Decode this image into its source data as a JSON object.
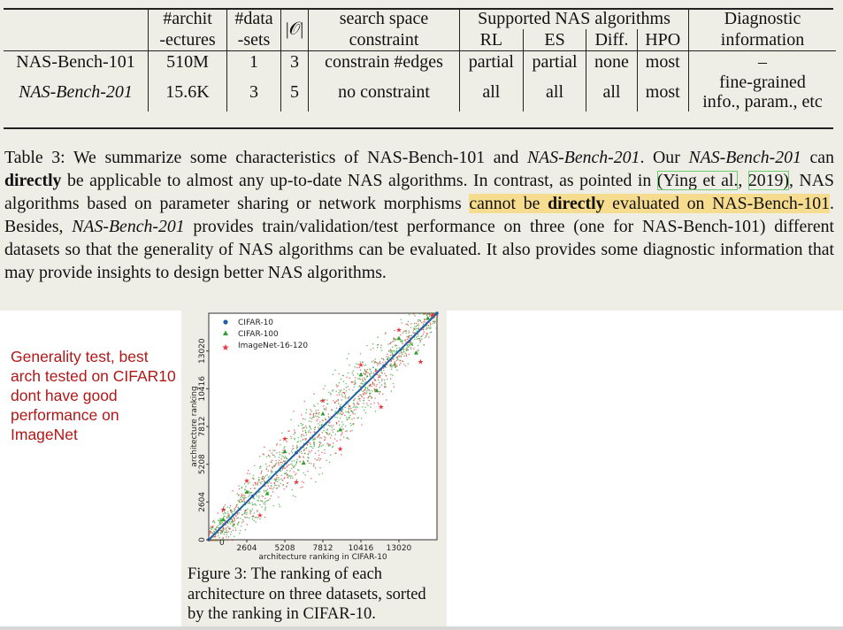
{
  "table": {
    "header_top": [
      "#archit",
      "#data",
      "|𝒪|",
      "search space",
      "Supported NAS algorithms",
      "Diagnostic"
    ],
    "header_bottom": [
      "-ectures",
      "-sets",
      "",
      "constraint",
      "RL",
      "ES",
      "Diff.",
      "HPO",
      "information"
    ],
    "rows": [
      {
        "name": "NAS-Bench-101",
        "architectures": "510M",
        "datasets": "1",
        "ops": "3",
        "constraint": "constrain #edges",
        "rl": "partial",
        "es": "partial",
        "diff": "none",
        "hpo": "most",
        "diagnostic": "–"
      },
      {
        "name": "NAS-Bench-201",
        "architectures": "15.6K",
        "datasets": "3",
        "ops": "5",
        "constraint": "no constraint",
        "rl": "all",
        "es": "all",
        "diff": "all",
        "hpo": "most",
        "diagnostic_line1": "fine-grained",
        "diagnostic_line2": "info., param., etc"
      }
    ]
  },
  "caption": {
    "s1": "Table 3:  We summarize some characteristics of NAS-Bench-101 and ",
    "s2": "NAS-Bench-201",
    "s3": ". Our ",
    "s4": "NAS-Bench-201",
    "s5": " can ",
    "s6": "directly",
    "s7": " be applicable to almost any up-to-date NAS algorithms.  In contrast, as pointed in ",
    "s8": "(Ying et al.",
    "s9": ", ",
    "s10": "2019)",
    "s11": ", NAS algorithms based on parameter sharing or network morphisms ",
    "s12": "cannot be ",
    "s13": "directly",
    "s14": " evaluated on NAS-Bench-101",
    "s15": ".  Besides, ",
    "s16": "NAS-Bench-201",
    "s17": " provides train/validation/test performance on three (one for NAS-Bench-101) different datasets so that the generality of NAS algorithms can be evaluated.  It also provides some diagnostic information that may provide insights to design better NAS algorithms."
  },
  "note": {
    "text": "Generality test, best arch tested on CIFAR10 dont have good performance on ImageNet",
    "color": "#b01818"
  },
  "figure": {
    "caption": "Figure 3:  The ranking of each architecture on three datasets, sorted by the ranking in CIFAR-10."
  },
  "chart_data": {
    "type": "scatter",
    "xlabel": "architecture ranking in CIFAR-10",
    "ylabel": "architecture ranking",
    "xlim": [
      0,
      15625
    ],
    "ylim": [
      0,
      15625
    ],
    "xticks": [
      2604,
      5208,
      7812,
      10416,
      13020
    ],
    "yticks": [
      0,
      2604,
      5208,
      7812,
      10416,
      13020
    ],
    "x_tick_labels": [
      "2604",
      "5208",
      "7812",
      "10416",
      "13020"
    ],
    "y_tick_labels": [
      "0",
      "2604",
      "5208",
      "7812",
      "10416",
      "13020"
    ],
    "origin_label": "0",
    "legend_position": "top-left",
    "series": [
      {
        "name": "CIFAR-10",
        "marker": "circle",
        "color": "#1f5fa8",
        "points": [
          [
            0,
            0
          ],
          [
            3000,
            3000
          ],
          [
            6000,
            6000
          ],
          [
            9000,
            9000
          ],
          [
            12000,
            12000
          ],
          [
            15625,
            15625
          ]
        ]
      },
      {
        "name": "CIFAR-100",
        "marker": "triangle",
        "color": "#2ca02c",
        "points": [
          [
            1000,
            1400
          ],
          [
            2604,
            3300
          ],
          [
            4000,
            3200
          ],
          [
            5208,
            6100
          ],
          [
            6500,
            5300
          ],
          [
            7812,
            8700
          ],
          [
            9000,
            7600
          ],
          [
            10416,
            11400
          ],
          [
            11500,
            10300
          ],
          [
            13020,
            13900
          ],
          [
            14200,
            12900
          ],
          [
            15000,
            15300
          ]
        ]
      },
      {
        "name": "ImageNet-16-120",
        "marker": "star",
        "color": "#e8333a",
        "points": [
          [
            1000,
            2100
          ],
          [
            2604,
            4100
          ],
          [
            3500,
            1700
          ],
          [
            5208,
            7000
          ],
          [
            6000,
            4000
          ],
          [
            7812,
            9600
          ],
          [
            9000,
            6300
          ],
          [
            10416,
            12100
          ],
          [
            11800,
            9200
          ],
          [
            13020,
            14500
          ],
          [
            14500,
            12300
          ],
          [
            15300,
            15500
          ]
        ]
      }
    ]
  }
}
